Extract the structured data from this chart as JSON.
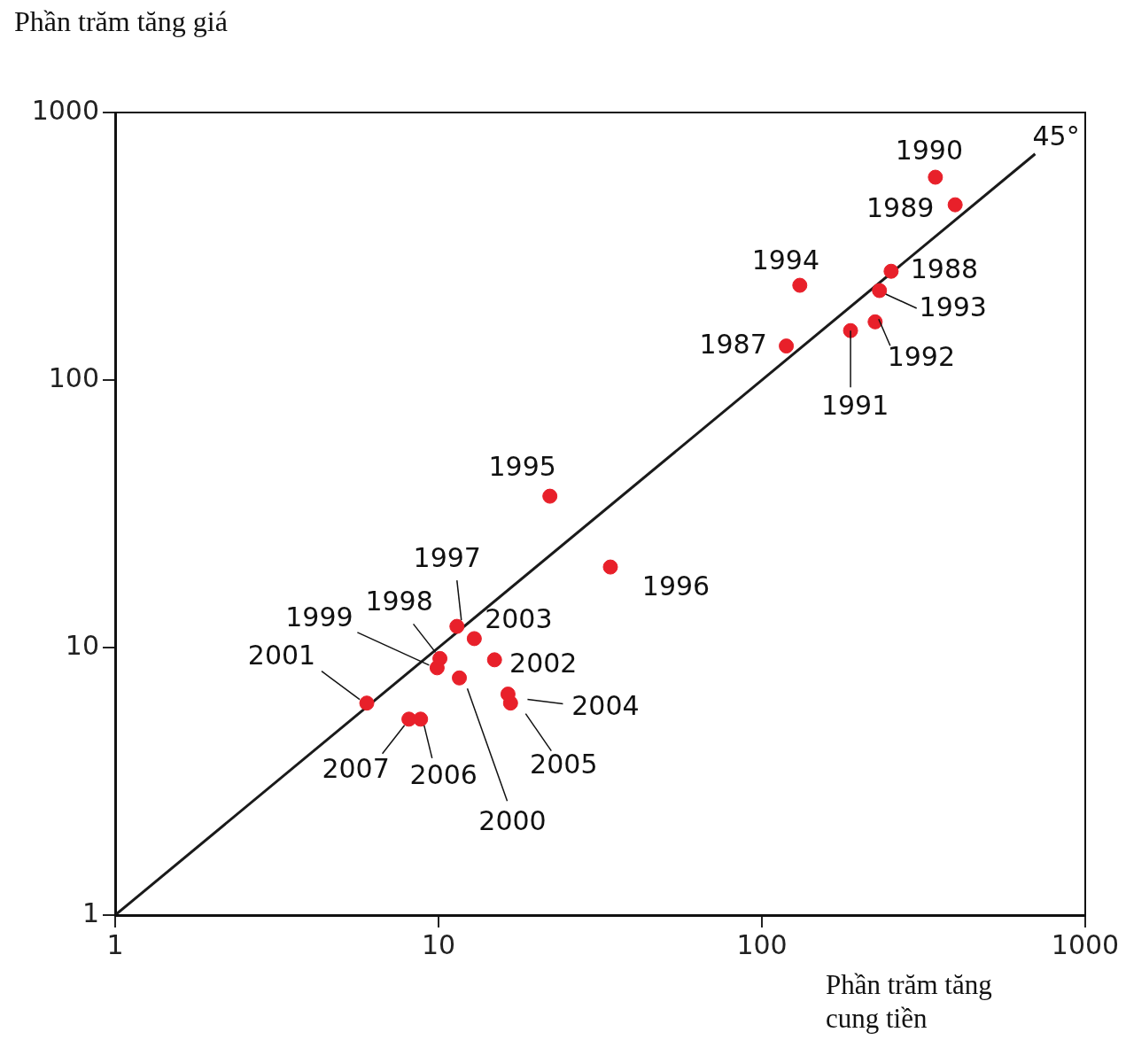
{
  "chart_data": {
    "type": "scatter",
    "ylabel": "Phần trăm tăng giá",
    "xlabel": "Phần trăm tăng cung tiền",
    "log": "xy",
    "xlim": [
      1,
      1000
    ],
    "ylim": [
      1,
      1000
    ],
    "xticks": [
      1,
      10,
      100,
      1000
    ],
    "yticks": [
      1,
      10,
      100,
      1000
    ],
    "grid": false,
    "legend": false,
    "annotations": [
      {
        "text": "45°",
        "x": 700,
        "y": 700
      }
    ],
    "series": [
      {
        "name": "1987",
        "color": "#e8202a",
        "marker": "circle",
        "x": [
          119
        ],
        "values": [
          134
        ]
      },
      {
        "name": "1988",
        "color": "#e8202a",
        "marker": "circle",
        "x": [
          251
        ],
        "values": [
          255
        ]
      },
      {
        "name": "1989",
        "color": "#e8202a",
        "marker": "circle",
        "x": [
          396
        ],
        "values": [
          452
        ]
      },
      {
        "name": "1990",
        "color": "#e8202a",
        "marker": "circle",
        "x": [
          344
        ],
        "values": [
          573
        ]
      },
      {
        "name": "1991",
        "color": "#e8202a",
        "marker": "circle",
        "x": [
          188
        ],
        "values": [
          153
        ]
      },
      {
        "name": "1992",
        "color": "#e8202a",
        "marker": "circle",
        "x": [
          224
        ],
        "values": [
          165
        ]
      },
      {
        "name": "1993",
        "color": "#e8202a",
        "marker": "circle",
        "x": [
          231
        ],
        "values": [
          216
        ]
      },
      {
        "name": "1994",
        "color": "#e8202a",
        "marker": "circle",
        "x": [
          131
        ],
        "values": [
          226
        ]
      },
      {
        "name": "1995",
        "color": "#e8202a",
        "marker": "circle",
        "x": [
          22.1
        ],
        "values": [
          36.8
        ]
      },
      {
        "name": "1996",
        "color": "#e8202a",
        "marker": "circle",
        "x": [
          34
        ],
        "values": [
          20
        ]
      },
      {
        "name": "1997",
        "color": "#e8202a",
        "marker": "circle",
        "x": [
          11.4
        ],
        "values": [
          12.0
        ]
      },
      {
        "name": "1998",
        "color": "#e8202a",
        "marker": "circle",
        "x": [
          10.1
        ],
        "values": [
          9.1
        ]
      },
      {
        "name": "1999",
        "color": "#e8202a",
        "marker": "circle",
        "x": [
          9.9
        ],
        "values": [
          8.4
        ]
      },
      {
        "name": "2000",
        "color": "#e8202a",
        "marker": "circle",
        "x": [
          11.6
        ],
        "values": [
          7.7
        ]
      },
      {
        "name": "2001",
        "color": "#e8202a",
        "marker": "circle",
        "x": [
          6.0
        ],
        "values": [
          6.2
        ]
      },
      {
        "name": "2002",
        "color": "#e8202a",
        "marker": "circle",
        "x": [
          14.9
        ],
        "values": [
          9.0
        ]
      },
      {
        "name": "2003",
        "color": "#e8202a",
        "marker": "circle",
        "x": [
          12.9
        ],
        "values": [
          10.8
        ]
      },
      {
        "name": "2004",
        "color": "#e8202a",
        "marker": "circle",
        "x": [
          16.4
        ],
        "values": [
          6.7
        ]
      },
      {
        "name": "2005",
        "color": "#e8202a",
        "marker": "circle",
        "x": [
          16.7
        ],
        "values": [
          6.2
        ]
      },
      {
        "name": "2006",
        "color": "#e8202a",
        "marker": "circle",
        "x": [
          8.8
        ],
        "values": [
          5.4
        ]
      },
      {
        "name": "2007",
        "color": "#e8202a",
        "marker": "circle",
        "x": [
          8.1
        ],
        "values": [
          5.4
        ]
      },
      {
        "type": "line",
        "color": "#1a1a1a",
        "x": [
          1,
          700
        ],
        "values": [
          1,
          700
        ]
      }
    ]
  }
}
